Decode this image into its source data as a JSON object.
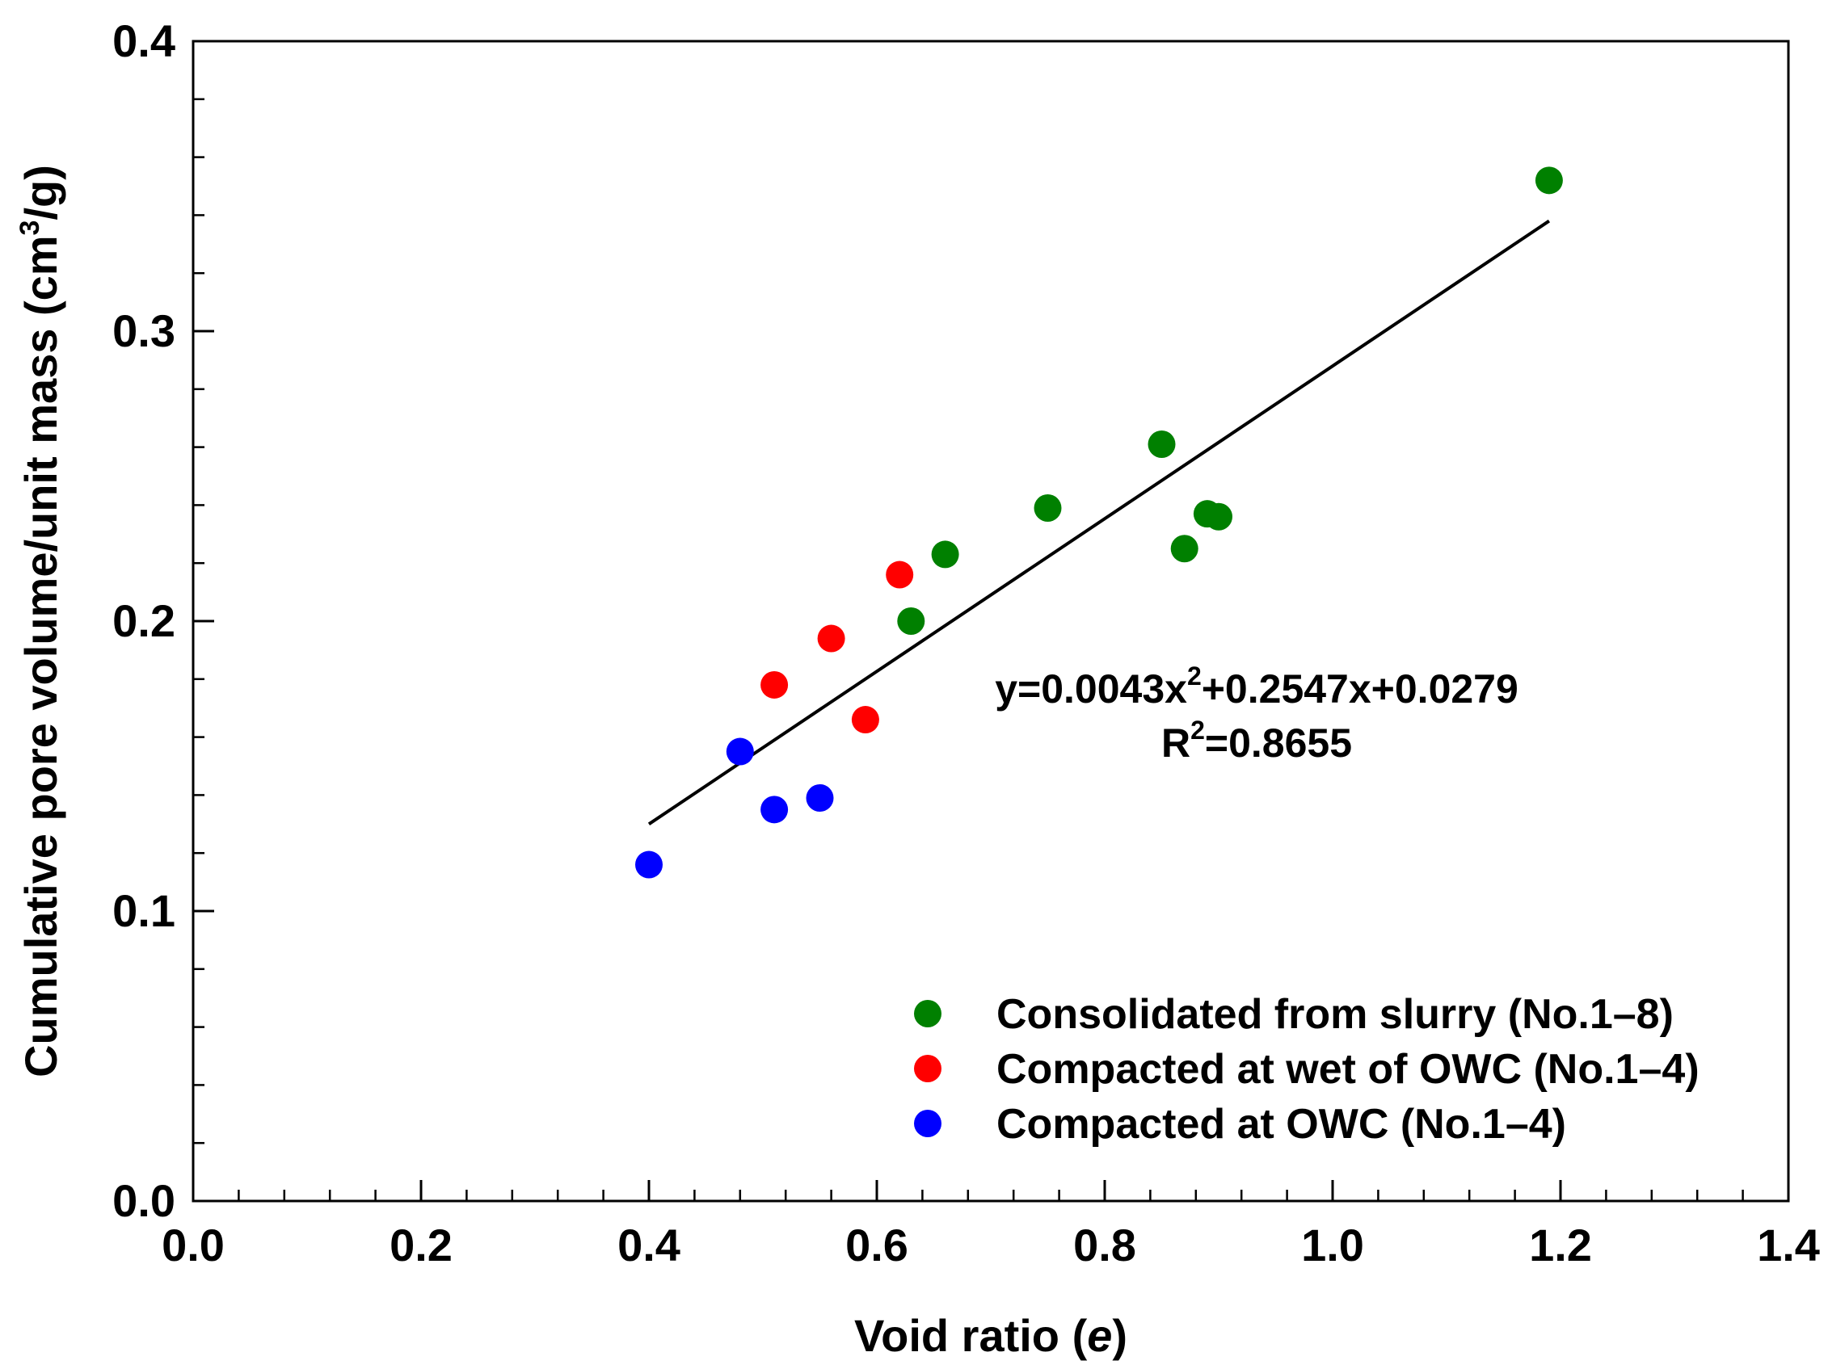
{
  "chart_data": {
    "type": "scatter",
    "title": "",
    "xlabel": {
      "main": "Void ratio (",
      "italic": "e",
      "end": ")"
    },
    "ylabel": {
      "main": "Cumulative pore volume/unit mass (cm",
      "sup": "3",
      "end": "/g)"
    },
    "xlim": [
      0.0,
      1.4
    ],
    "ylim": [
      0.0,
      0.4
    ],
    "x_ticks": [
      "0.0",
      "0.2",
      "0.4",
      "0.6",
      "0.8",
      "1.0",
      "1.2",
      "1.4"
    ],
    "y_ticks": [
      "0.0",
      "0.1",
      "0.2",
      "0.3",
      "0.4"
    ],
    "x_minor_step": 0.04,
    "y_minor_step": 0.02,
    "series": [
      {
        "name": "Consolidated from slurry (No.1–8)",
        "color": "#008000",
        "points": [
          [
            0.63,
            0.2
          ],
          [
            0.66,
            0.223
          ],
          [
            0.75,
            0.239
          ],
          [
            0.85,
            0.261
          ],
          [
            0.87,
            0.225
          ],
          [
            0.89,
            0.237
          ],
          [
            0.9,
            0.236
          ],
          [
            1.19,
            0.352
          ]
        ]
      },
      {
        "name": "Compacted at wet of OWC (No.1–4)",
        "color": "#ff0000",
        "points": [
          [
            0.51,
            0.178
          ],
          [
            0.56,
            0.194
          ],
          [
            0.59,
            0.166
          ],
          [
            0.62,
            0.216
          ]
        ]
      },
      {
        "name": "Compacted at OWC (No.1–4)",
        "color": "#0000ff",
        "points": [
          [
            0.4,
            0.116
          ],
          [
            0.48,
            0.155
          ],
          [
            0.51,
            0.135
          ],
          [
            0.55,
            0.139
          ]
        ]
      }
    ],
    "fit": {
      "type": "line",
      "x_range": [
        0.4,
        1.19
      ],
      "y_range": [
        0.13,
        0.338
      ],
      "color": "#000000",
      "equation": {
        "a": "y=0.0043x",
        "a_sup": "2",
        "b": "+0.2547x+0.0279"
      },
      "r2": {
        "a": "R",
        "a_sup": "2",
        "b": "=0.8655"
      }
    },
    "legend": {
      "position": "bottom-right"
    }
  }
}
